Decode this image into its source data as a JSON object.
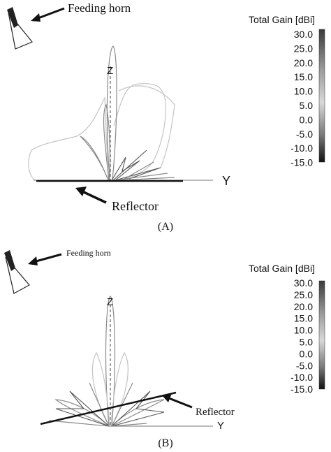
{
  "panels": [
    {
      "caption": "(A)",
      "feed_label": "Feeding horn",
      "reflector_label": "Reflector",
      "axis_z": "Z",
      "axis_y": "Y",
      "colorbar": {
        "title": "Total Gain [dBi]",
        "labels": [
          "30.0",
          "25.0",
          "20.0",
          "15.0",
          "10.0",
          "5.0",
          "0.0",
          "-5.0",
          "-10.0",
          "-15.0"
        ]
      }
    },
    {
      "caption": "(B)",
      "feed_label": "Feeding horn",
      "reflector_label": "Reflector",
      "axis_z": "Z",
      "axis_y": "Y",
      "colorbar": {
        "title": "Total Gain [dBi]",
        "labels": [
          "30.0",
          "25.0",
          "20.0",
          "15.0",
          "10.0",
          "5.0",
          "0.0",
          "-5.0",
          "-10.0",
          "-15.0"
        ]
      }
    }
  ]
}
